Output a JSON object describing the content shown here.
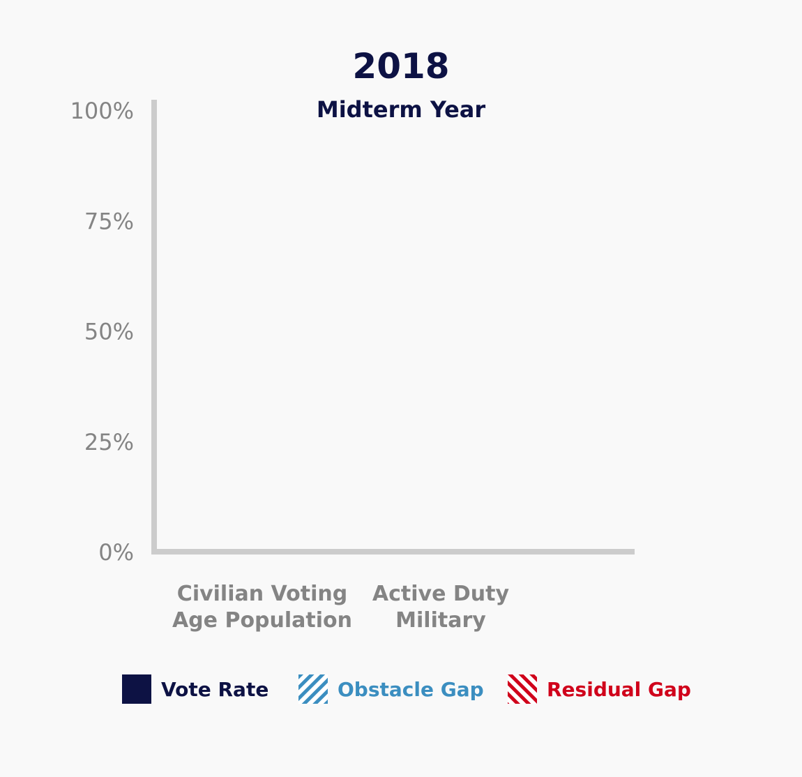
{
  "title": "2018",
  "subtitle": "Midterm Year",
  "chart_data": {
    "type": "bar",
    "title": "2018",
    "subtitle": "Midterm Year",
    "categories": [
      "Civilian Voting\nAge Population",
      "Active Duty\nMilitary"
    ],
    "series": [
      {
        "name": "Vote Rate",
        "values": [
          null,
          null
        ],
        "color": "#0d1244",
        "pattern": "solid"
      },
      {
        "name": "Obstacle Gap",
        "values": [
          null,
          null
        ],
        "color": "#3b8ec0",
        "pattern": "hatch-forward"
      },
      {
        "name": "Residual Gap",
        "values": [
          null,
          null
        ],
        "color": "#d0021b",
        "pattern": "hatch-backward"
      }
    ],
    "y_ticks": [
      "0%",
      "25%",
      "50%",
      "75%",
      "100%"
    ],
    "ylim": [
      0,
      100
    ],
    "grid": false,
    "legend_position": "bottom"
  },
  "colors": {
    "text_dark": "#0d1244",
    "axis": "#cccccc",
    "tick_label": "#848484",
    "background": "#f9f9f9"
  }
}
